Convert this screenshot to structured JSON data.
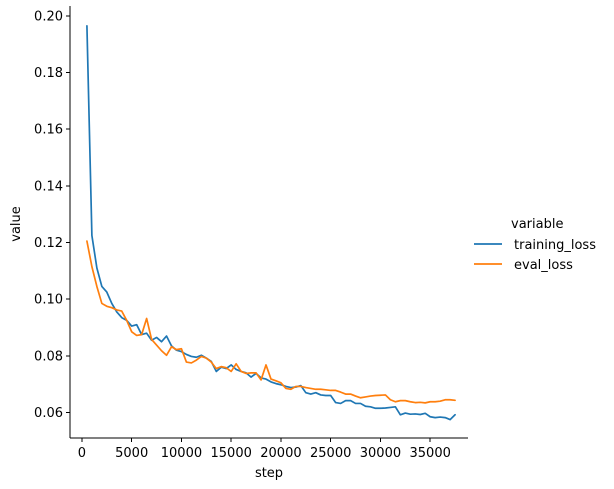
{
  "chart_data": {
    "type": "line",
    "title": "",
    "xlabel": "step",
    "ylabel": "value",
    "xlim": [
      -1200,
      38800
    ],
    "ylim": [
      0.051,
      0.2035
    ],
    "x_ticks": [
      0,
      5000,
      10000,
      15000,
      20000,
      25000,
      30000,
      35000
    ],
    "x_tick_labels": [
      "0",
      "5000",
      "10000",
      "15000",
      "20000",
      "25000",
      "30000",
      "35000"
    ],
    "y_ticks": [
      0.06,
      0.08,
      0.1,
      0.12,
      0.14,
      0.16,
      0.18,
      0.2
    ],
    "y_tick_labels": [
      "0.06",
      "0.08",
      "0.10",
      "0.12",
      "0.14",
      "0.16",
      "0.18",
      "0.20"
    ],
    "grid": false,
    "legend": {
      "title": "variable",
      "placement": "right-outside"
    },
    "series": [
      {
        "name": "training_loss",
        "color": "#1f77b4",
        "x": [
          500,
          1000,
          1500,
          2000,
          2500,
          3000,
          3500,
          4000,
          4500,
          5000,
          5500,
          6000,
          6500,
          7000,
          7500,
          8000,
          8500,
          9000,
          9500,
          10000,
          10500,
          11000,
          11500,
          12000,
          12500,
          13000,
          13500,
          14000,
          14500,
          15000,
          15500,
          16000,
          16500,
          17000,
          17500,
          18000,
          18500,
          19000,
          19500,
          20000,
          20500,
          21000,
          21500,
          22000,
          22500,
          23000,
          23500,
          24000,
          24500,
          25000,
          25500,
          26000,
          26500,
          27000,
          27500,
          28000,
          28500,
          29000,
          29500,
          30000,
          30500,
          31000,
          31500,
          32000,
          32500,
          33000,
          33500,
          34000,
          34500,
          35000,
          35500,
          36000,
          36500,
          37000,
          37500
        ],
        "y": [
          0.1965,
          0.1225,
          0.111,
          0.1045,
          0.1025,
          0.0985,
          0.0955,
          0.0935,
          0.0925,
          0.0905,
          0.091,
          0.0875,
          0.088,
          0.0855,
          0.0865,
          0.085,
          0.087,
          0.0835,
          0.082,
          0.0815,
          0.0805,
          0.0798,
          0.0795,
          0.0802,
          0.0792,
          0.078,
          0.0745,
          0.076,
          0.0755,
          0.0768,
          0.0752,
          0.0745,
          0.074,
          0.0725,
          0.0738,
          0.0722,
          0.0718,
          0.0708,
          0.0702,
          0.0698,
          0.0692,
          0.0688,
          0.069,
          0.0695,
          0.067,
          0.0665,
          0.067,
          0.0662,
          0.066,
          0.066,
          0.0635,
          0.0632,
          0.0642,
          0.0642,
          0.0632,
          0.0632,
          0.0622,
          0.062,
          0.0615,
          0.0615,
          0.0616,
          0.0618,
          0.062,
          0.0592,
          0.0598,
          0.0594,
          0.0595,
          0.0593,
          0.0597,
          0.0585,
          0.0582,
          0.0584,
          0.0582,
          0.0575,
          0.0592
        ]
      },
      {
        "name": "eval_loss",
        "color": "#ff7f0e",
        "x": [
          500,
          1000,
          1500,
          2000,
          2500,
          3000,
          3500,
          4000,
          4500,
          5000,
          5500,
          6000,
          6500,
          7000,
          7500,
          8000,
          8500,
          9000,
          9500,
          10000,
          10500,
          11000,
          11500,
          12000,
          12500,
          13000,
          13500,
          14000,
          14500,
          15000,
          15500,
          16000,
          16500,
          17000,
          17500,
          18000,
          18500,
          19000,
          19500,
          20000,
          20500,
          21000,
          21500,
          22000,
          22500,
          23000,
          23500,
          24000,
          24500,
          25000,
          25500,
          26000,
          26500,
          27000,
          27500,
          28000,
          28500,
          29000,
          29500,
          30000,
          30500,
          31000,
          31500,
          32000,
          32500,
          33000,
          33500,
          34000,
          34500,
          35000,
          35500,
          36000,
          36500,
          37000,
          37500
        ],
        "y": [
          0.1205,
          0.1115,
          0.1045,
          0.0985,
          0.0975,
          0.097,
          0.0962,
          0.0958,
          0.0925,
          0.0885,
          0.0872,
          0.0875,
          0.0932,
          0.0858,
          0.0838,
          0.0818,
          0.0802,
          0.0832,
          0.0822,
          0.0825,
          0.0778,
          0.0775,
          0.0785,
          0.0798,
          0.0792,
          0.0778,
          0.0755,
          0.0762,
          0.0758,
          0.0745,
          0.0772,
          0.0745,
          0.0738,
          0.074,
          0.074,
          0.0715,
          0.0768,
          0.0718,
          0.0712,
          0.0705,
          0.0685,
          0.0682,
          0.0692,
          0.0692,
          0.0688,
          0.0685,
          0.0682,
          0.0682,
          0.068,
          0.0678,
          0.0678,
          0.0672,
          0.0665,
          0.0665,
          0.0658,
          0.0652,
          0.0655,
          0.0658,
          0.066,
          0.0661,
          0.0662,
          0.0645,
          0.0638,
          0.0642,
          0.0642,
          0.0638,
          0.0635,
          0.0636,
          0.0634,
          0.0638,
          0.0638,
          0.064,
          0.0645,
          0.0645,
          0.0643
        ]
      }
    ]
  }
}
